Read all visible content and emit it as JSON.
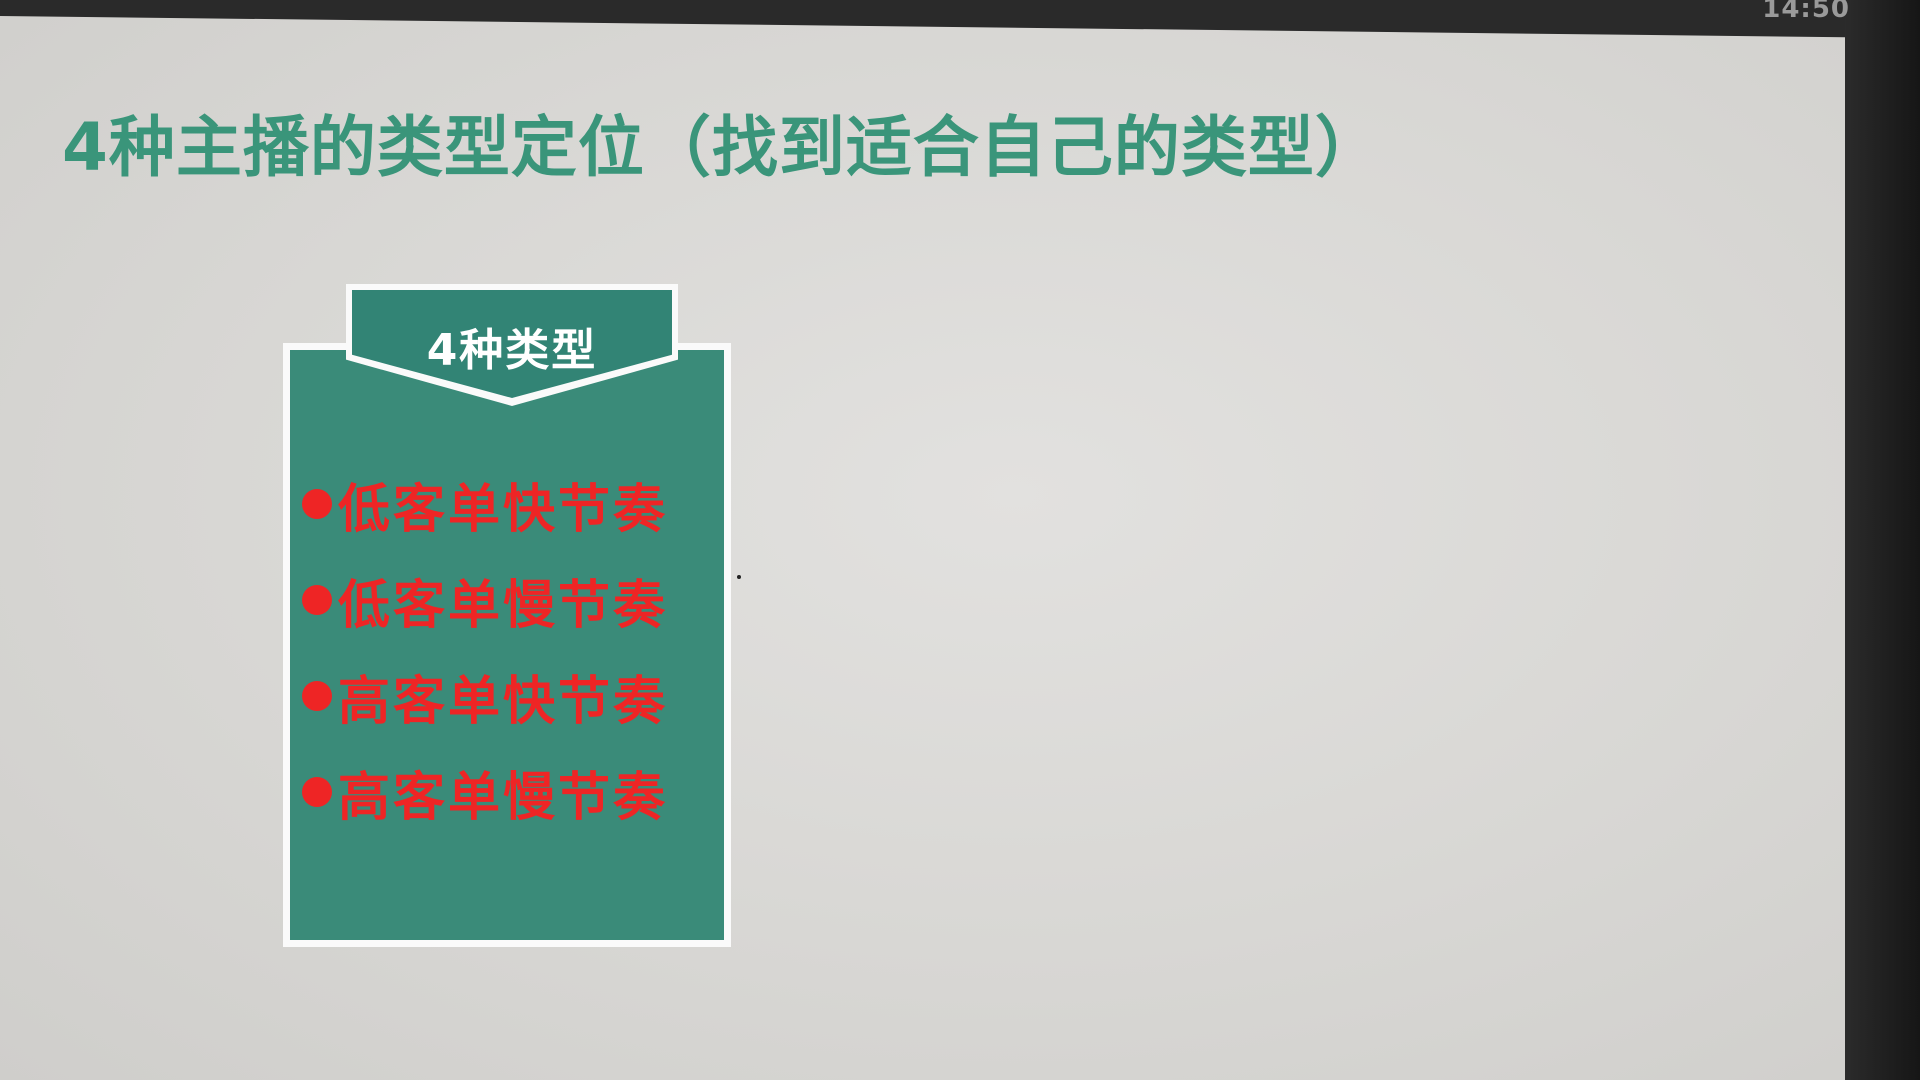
{
  "status": {
    "clock": "14:50"
  },
  "slide": {
    "title": "4种主播的类型定位（找到适合自己的类型）",
    "card": {
      "header": "4种类型",
      "items": [
        {
          "label": "低客单快节奏"
        },
        {
          "label": "低客单慢节奏"
        },
        {
          "label": "高客单快节奏"
        },
        {
          "label": "高客单慢节奏"
        }
      ]
    }
  },
  "colors": {
    "title": "#3a957a",
    "card_background": "#3a8b79",
    "header_tab": "#328475",
    "bullet_text": "#ee2525",
    "slide_background": "#dcdbd8"
  }
}
